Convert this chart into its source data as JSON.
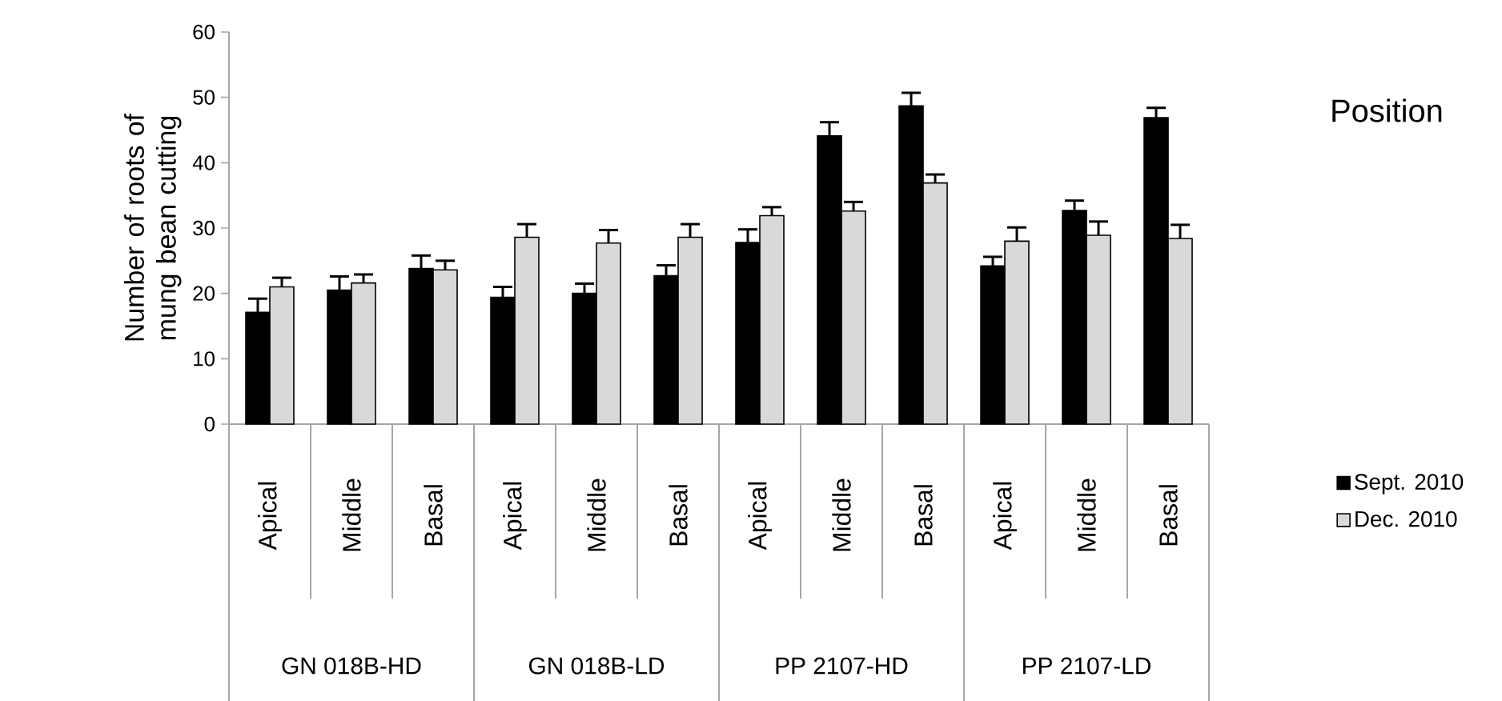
{
  "chart_data": {
    "type": "bar",
    "ylabel": "Number of roots  of mung bean cutting",
    "legend_title": "Position",
    "categories": [
      "Apical",
      "Middle",
      "Basal",
      "Apical",
      "Middle",
      "Basal",
      "Apical",
      "Middle",
      "Basal",
      "Apical",
      "Middle",
      "Basal"
    ],
    "annotations": [
      "GN 018B-HD",
      "GN 018B-LD",
      "PP 2107-HD",
      "PP 2107-LD"
    ],
    "series": [
      {
        "name": "Sept. 2010",
        "color": "#000000",
        "values": [
          17.1,
          20.5,
          23.8,
          19.4,
          20.0,
          22.7,
          27.8,
          44.1,
          48.7,
          24.2,
          32.7,
          46.9
        ],
        "errors": [
          [
            17.1,
            19.2
          ],
          [
            20.5,
            22.6
          ],
          [
            23.8,
            25.8
          ],
          [
            19.4,
            21.0
          ],
          [
            20.0,
            21.5
          ],
          [
            22.7,
            24.3
          ],
          [
            27.8,
            29.8
          ],
          [
            44.1,
            46.2
          ],
          [
            48.7,
            50.7
          ],
          [
            24.2,
            25.6
          ],
          [
            32.7,
            34.2
          ],
          [
            46.9,
            48.4
          ]
        ]
      },
      {
        "name": "Dec. 2010",
        "color": "#d9d9d9",
        "values": [
          21.0,
          21.6,
          23.6,
          28.6,
          27.7,
          28.6,
          31.9,
          32.6,
          36.9,
          28.0,
          28.9,
          28.4
        ],
        "errors": [
          [
            21.0,
            22.4
          ],
          [
            21.6,
            22.9
          ],
          [
            23.6,
            25.0
          ],
          [
            28.6,
            30.6
          ],
          [
            27.7,
            29.7
          ],
          [
            28.6,
            30.6
          ],
          [
            31.9,
            33.2
          ],
          [
            32.6,
            34.0
          ],
          [
            36.9,
            38.2
          ],
          [
            28.0,
            30.1
          ],
          [
            28.9,
            31.0
          ],
          [
            28.4,
            30.5
          ]
        ]
      }
    ],
    "ylim": [
      0,
      60
    ],
    "yticks": [
      0,
      10,
      20,
      30,
      40,
      50,
      60
    ],
    "legend": "right",
    "grid": false
  }
}
